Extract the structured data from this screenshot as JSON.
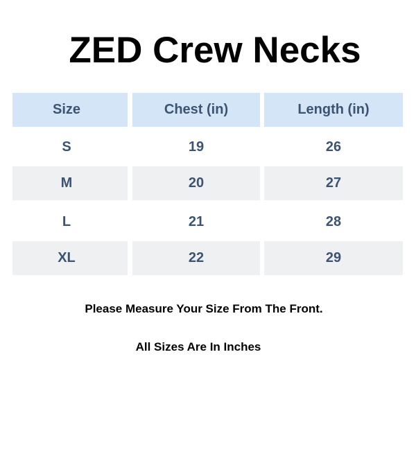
{
  "title": "ZED Crew Necks",
  "table": {
    "headers": [
      "Size",
      "Chest (in)",
      "Length (in)"
    ],
    "rows": [
      [
        "S",
        "19",
        "26"
      ],
      [
        "M",
        "20",
        "27"
      ],
      [
        "L",
        "21",
        "28"
      ],
      [
        "XL",
        "22",
        "29"
      ]
    ]
  },
  "notes": [
    "Please Measure Your Size From The Front.",
    "All Sizes Are In Inches"
  ],
  "colors": {
    "header_bg": "#d3e5f6",
    "alt_row_bg": "#eff0f2",
    "cell_text": "#3c5372"
  }
}
